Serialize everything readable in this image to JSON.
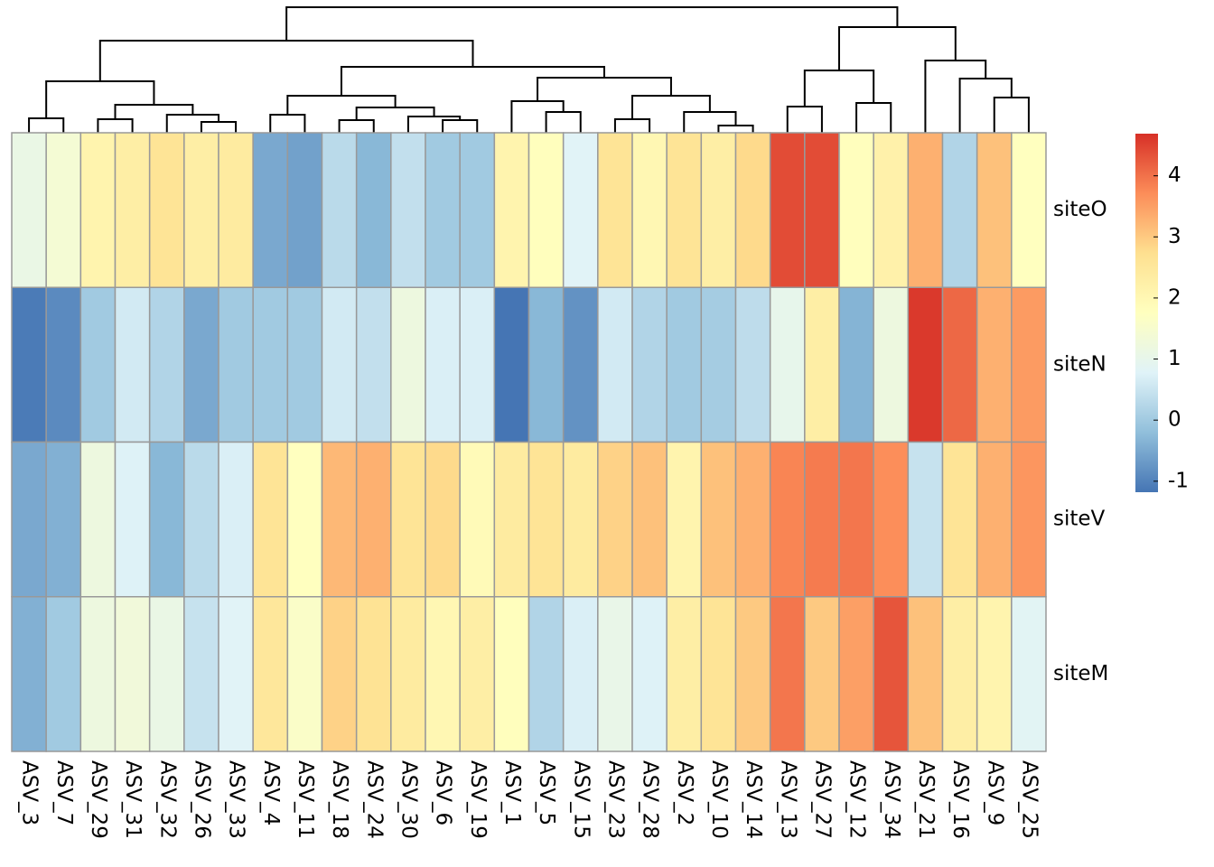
{
  "chart_data": {
    "type": "heatmap",
    "columns": [
      "ASV_3",
      "ASV_7",
      "ASV_29",
      "ASV_31",
      "ASV_32",
      "ASV_26",
      "ASV_33",
      "ASV_4",
      "ASV_11",
      "ASV_18",
      "ASV_24",
      "ASV_30",
      "ASV_6",
      "ASV_19",
      "ASV_1",
      "ASV_5",
      "ASV_15",
      "ASV_23",
      "ASV_28",
      "ASV_2",
      "ASV_10",
      "ASV_14",
      "ASV_13",
      "ASV_27",
      "ASV_12",
      "ASV_34",
      "ASV_21",
      "ASV_16",
      "ASV_9",
      "ASV_25"
    ],
    "rows": [
      "siteO",
      "siteN",
      "siteV",
      "siteM"
    ],
    "values": [
      [
        1.1,
        1.4,
        2.1,
        2.3,
        2.6,
        2.3,
        2.4,
        -0.5,
        -0.6,
        0.3,
        -0.3,
        0.4,
        0.0,
        0.0,
        2.1,
        1.8,
        0.8,
        2.6,
        2.0,
        2.6,
        2.3,
        2.8,
        4.4,
        4.4,
        1.8,
        2.2,
        3.3,
        0.2,
        3.1,
        1.75
      ],
      [
        -1.1,
        -0.9,
        0.0,
        0.6,
        0.2,
        -0.5,
        0.0,
        0.0,
        0.0,
        0.6,
        0.4,
        1.2,
        0.7,
        0.7,
        -1.18,
        -0.3,
        -0.8,
        0.6,
        0.2,
        0.0,
        0.05,
        0.35,
        1.0,
        2.3,
        -0.35,
        1.2,
        4.6,
        4.1,
        3.3,
        3.55
      ],
      [
        -0.5,
        -0.4,
        1.2,
        0.75,
        -0.3,
        0.3,
        0.7,
        2.6,
        1.75,
        3.2,
        3.3,
        2.6,
        2.8,
        1.9,
        2.4,
        2.6,
        2.4,
        2.9,
        3.1,
        2.1,
        3.1,
        3.3,
        3.8,
        3.9,
        3.95,
        3.7,
        0.45,
        2.6,
        3.3,
        3.6
      ],
      [
        -0.4,
        0.0,
        1.2,
        1.3,
        1.1,
        0.45,
        0.8,
        2.5,
        1.6,
        2.9,
        2.65,
        2.4,
        2.0,
        2.3,
        1.8,
        0.2,
        0.7,
        1.05,
        0.75,
        2.3,
        2.6,
        3.0,
        3.95,
        3.0,
        3.5,
        4.3,
        3.1,
        2.3,
        2.1,
        0.85
      ]
    ],
    "colors": [
      "#4575B4",
      "#91BFDB",
      "#E0F3F8",
      "#FFFFBF",
      "#FEE090",
      "#FC8D59",
      "#D73027"
    ],
    "color_lim": [
      -1.18,
      4.69
    ],
    "legend_ticks": [
      -1,
      0,
      1,
      2,
      3,
      4
    ]
  }
}
